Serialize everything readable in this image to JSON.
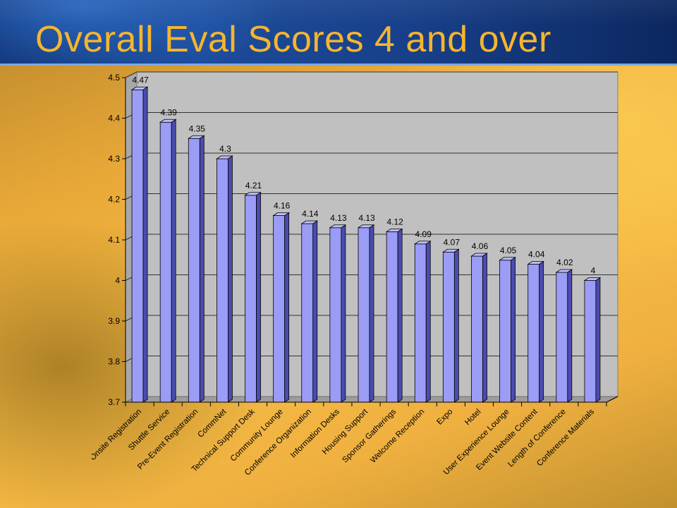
{
  "slide": {
    "title": "Overall Eval Scores 4 and over"
  },
  "colors": {
    "bar_face": "#9a9cf6",
    "bar_side": "#4a4cae",
    "bar_top": "#bcbefa",
    "wall": "#c0c0c0",
    "floor": "#9c9c9c",
    "title": "#f5b52e"
  },
  "chart_data": {
    "type": "bar",
    "title": "",
    "xlabel": "",
    "ylabel": "",
    "ylim": [
      3.7,
      4.5
    ],
    "yticks": [
      3.7,
      3.8,
      3.9,
      4,
      4.1,
      4.2,
      4.3,
      4.4,
      4.5
    ],
    "ytick_labels": [
      "3.7",
      "3.8",
      "3.9",
      "4",
      "4.1",
      "4.2",
      "4.3",
      "4.4",
      "4.5"
    ],
    "grid": true,
    "legend": "none",
    "style": "3d-column",
    "categories": [
      "Onsite Registration",
      "Shuttle Service",
      "Pre-Event Registration",
      "CommNet",
      "Technical Support Desk",
      "Community Lounge",
      "Conference Organization",
      "Information Desks",
      "Housing Support",
      "Sponsor Gatherings",
      "Welcome Reception",
      "Expo",
      "Hotel",
      "User Experience Lounge",
      "Event Website Content",
      "Length of Conference",
      "Conference Materials"
    ],
    "values": [
      4.47,
      4.39,
      4.35,
      4.3,
      4.21,
      4.16,
      4.14,
      4.13,
      4.13,
      4.12,
      4.09,
      4.07,
      4.06,
      4.05,
      4.04,
      4.02,
      4
    ],
    "data_labels": [
      "4.47",
      "4.39",
      "4.35",
      "4.3",
      "4.21",
      "4.16",
      "4.14",
      "4.13",
      "4.13",
      "4.12",
      "4.09",
      "4.07",
      "4.06",
      "4.05",
      "4.04",
      "4.02",
      "4"
    ]
  }
}
